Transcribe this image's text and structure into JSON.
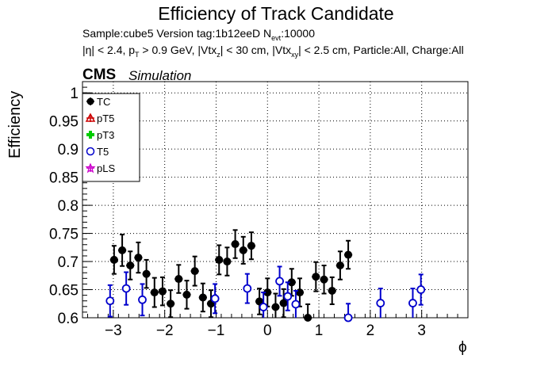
{
  "chart_data": {
    "type": "scatter",
    "title": "Efficiency of Track Candidate",
    "subtitle_1": "Sample:cube5   Version tag:1b12eeD  N",
    "subtitle_1_sub": "evt",
    "subtitle_1_end": ":10000",
    "subtitle_2_parts": [
      "|η| < 2.4, p",
      "T",
      " > 0.9 GeV, |Vtx",
      "z",
      "| < 30 cm, |Vtx",
      "xy",
      "| < 2.5 cm, Particle:All, Charge:All"
    ],
    "experiment_label": "CMS",
    "experiment_tag": "Simulation",
    "xlabel": "ϕ",
    "ylabel": "Efficiency",
    "xlim": [
      -3.6,
      3.9
    ],
    "ylim": [
      0.6,
      1.02
    ],
    "xticks": [
      -3,
      -2,
      -1,
      0,
      1,
      2,
      3
    ],
    "yticks": [
      0.6,
      0.65,
      0.7,
      0.75,
      0.8,
      0.85,
      0.9,
      0.95,
      1
    ],
    "ytick_labels": [
      "0.6",
      "0.65",
      "0.7",
      "0.75",
      "0.8",
      "0.85",
      "0.9",
      "0.95",
      "1"
    ],
    "grid": true,
    "legend_position": "top-left",
    "bin_half_width": 0.0785,
    "series": [
      {
        "name": "TC",
        "color": "#000000",
        "marker": "filled-circle",
        "points": [
          {
            "x": -2.985,
            "y": 0.703,
            "err": 0.025
          },
          {
            "x": -2.827,
            "y": 0.72,
            "err": 0.028
          },
          {
            "x": -2.67,
            "y": 0.693,
            "err": 0.025
          },
          {
            "x": -2.513,
            "y": 0.707,
            "err": 0.027
          },
          {
            "x": -2.356,
            "y": 0.678,
            "err": 0.025
          },
          {
            "x": -2.199,
            "y": 0.645,
            "err": 0.026
          },
          {
            "x": -2.042,
            "y": 0.647,
            "err": 0.025
          },
          {
            "x": -1.885,
            "y": 0.625,
            "err": 0.024
          },
          {
            "x": -1.728,
            "y": 0.669,
            "err": 0.025
          },
          {
            "x": -1.571,
            "y": 0.641,
            "err": 0.025
          },
          {
            "x": -1.414,
            "y": 0.683,
            "err": 0.026
          },
          {
            "x": -1.257,
            "y": 0.636,
            "err": 0.025
          },
          {
            "x": -1.1,
            "y": 0.625,
            "err": 0.024
          },
          {
            "x": -0.942,
            "y": 0.703,
            "err": 0.026
          },
          {
            "x": -0.785,
            "y": 0.7,
            "err": 0.025
          },
          {
            "x": -0.628,
            "y": 0.731,
            "err": 0.025
          },
          {
            "x": -0.471,
            "y": 0.72,
            "err": 0.024
          },
          {
            "x": -0.314,
            "y": 0.728,
            "err": 0.024
          },
          {
            "x": -0.157,
            "y": 0.629,
            "err": 0.023
          },
          {
            "x": 0.0,
            "y": 0.645,
            "err": 0.025
          },
          {
            "x": 0.157,
            "y": 0.619,
            "err": 0.024
          },
          {
            "x": 0.314,
            "y": 0.626,
            "err": 0.025
          },
          {
            "x": 0.471,
            "y": 0.663,
            "err": 0.024
          },
          {
            "x": 0.628,
            "y": 0.645,
            "err": 0.025
          },
          {
            "x": 0.785,
            "y": 0.6,
            "err": 0.024
          },
          {
            "x": 0.942,
            "y": 0.673,
            "err": 0.026
          },
          {
            "x": 1.1,
            "y": 0.668,
            "err": 0.025
          },
          {
            "x": 1.257,
            "y": 0.648,
            "err": 0.024
          },
          {
            "x": 1.414,
            "y": 0.693,
            "err": 0.025
          },
          {
            "x": 1.571,
            "y": 0.712,
            "err": 0.025
          }
        ]
      },
      {
        "name": "pT5",
        "color": "#cc0000",
        "marker": "open-triangle",
        "points": []
      },
      {
        "name": "pT3",
        "color": "#00cc00",
        "marker": "filled-cross",
        "points": []
      },
      {
        "name": "T5",
        "color": "#0000cc",
        "marker": "open-circle",
        "points": [
          {
            "x": -3.063,
            "y": 0.63,
            "err": 0.028
          },
          {
            "x": -2.749,
            "y": 0.652,
            "err": 0.029
          },
          {
            "x": -2.435,
            "y": 0.632,
            "err": 0.028
          },
          {
            "x": -1.021,
            "y": 0.634,
            "err": 0.026
          },
          {
            "x": -0.393,
            "y": 0.652,
            "err": 0.026
          },
          {
            "x": -0.079,
            "y": 0.619,
            "err": 0.026
          },
          {
            "x": 0.236,
            "y": 0.665,
            "err": 0.026
          },
          {
            "x": 0.393,
            "y": 0.638,
            "err": 0.025
          },
          {
            "x": 0.55,
            "y": 0.624,
            "err": 0.024
          },
          {
            "x": 1.571,
            "y": 0.6,
            "err": 0.025
          },
          {
            "x": 2.199,
            "y": 0.626,
            "err": 0.026
          },
          {
            "x": 2.827,
            "y": 0.626,
            "err": 0.026
          },
          {
            "x": 2.985,
            "y": 0.65,
            "err": 0.027
          }
        ]
      },
      {
        "name": "pLS",
        "color": "#cc00cc",
        "marker": "open-star",
        "points": []
      }
    ]
  }
}
